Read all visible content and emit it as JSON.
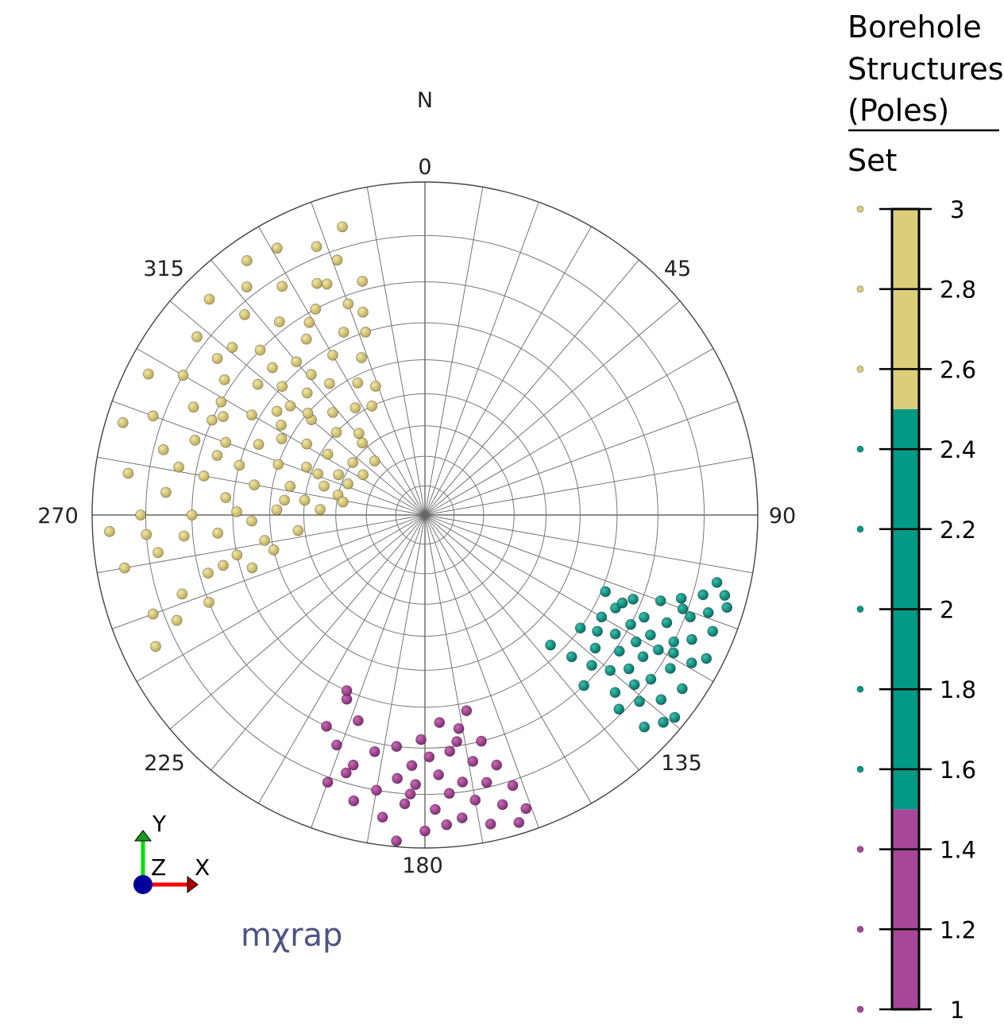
{
  "chart_data": {
    "type": "scatter",
    "projection": "stereographic (equal-angle), lower hemisphere poles",
    "north_label": "N",
    "azimuth_tick_labels": [
      "0",
      "45",
      "90",
      "135",
      "180",
      "225",
      "270",
      "315"
    ],
    "grid": {
      "on": true,
      "radial_step_deg": 10,
      "ring_step_deg": 10
    },
    "legend": {
      "title_lines": [
        "Borehole",
        "Structures",
        "(Poles)"
      ],
      "subtitle": "Set",
      "placement": "right",
      "range": [
        1,
        3
      ],
      "tick_labels": [
        "1",
        "1.2",
        "1.4",
        "1.6",
        "1.8",
        "2",
        "2.2",
        "2.4",
        "2.6",
        "2.8",
        "3"
      ],
      "ticks": [
        1,
        1.2,
        1.4,
        1.6,
        1.8,
        2,
        2.2,
        2.4,
        2.6,
        2.8,
        3
      ],
      "bands": [
        {
          "from": 1,
          "to": 1.5,
          "color": "#a8479a"
        },
        {
          "from": 1.5,
          "to": 2.5,
          "color": "#009a85"
        },
        {
          "from": 2.5,
          "to": 3,
          "color": "#dccd7a"
        }
      ]
    },
    "series": [
      {
        "set": 3,
        "color": "#cdbb6a",
        "points_trend_plunge": [
          [
            250,
            8
          ],
          [
            252,
            15
          ],
          [
            255,
            22
          ],
          [
            258,
            30
          ],
          [
            260,
            5
          ],
          [
            262,
            12
          ],
          [
            265,
            18
          ],
          [
            265,
            26
          ],
          [
            268,
            35
          ],
          [
            270,
            9
          ],
          [
            270,
            20
          ],
          [
            272,
            42
          ],
          [
            275,
            14
          ],
          [
            275,
            28
          ],
          [
            277,
            50
          ],
          [
            278,
            6
          ],
          [
            280,
            22
          ],
          [
            280,
            35
          ],
          [
            282,
            45
          ],
          [
            284,
            12
          ],
          [
            285,
            30
          ],
          [
            286,
            55
          ],
          [
            288,
            18
          ],
          [
            289,
            40
          ],
          [
            290,
            8
          ],
          [
            290,
            25
          ],
          [
            292,
            48
          ],
          [
            293,
            33
          ],
          [
            295,
            15
          ],
          [
            295,
            58
          ],
          [
            296,
            22
          ],
          [
            298,
            38
          ],
          [
            300,
            10
          ],
          [
            300,
            28
          ],
          [
            301,
            45
          ],
          [
            302,
            52
          ],
          [
            304,
            18
          ],
          [
            305,
            33
          ],
          [
            306,
            60
          ],
          [
            308,
            8
          ],
          [
            308,
            25
          ],
          [
            310,
            42
          ],
          [
            311,
            15
          ],
          [
            312,
            30
          ],
          [
            313,
            50
          ],
          [
            315,
            5
          ],
          [
            315,
            20
          ],
          [
            316,
            36
          ],
          [
            318,
            12
          ],
          [
            318,
            45
          ],
          [
            320,
            28
          ],
          [
            321,
            55
          ],
          [
            322,
            8
          ],
          [
            323,
            18
          ],
          [
            324,
            38
          ],
          [
            326,
            25
          ],
          [
            327,
            48
          ],
          [
            328,
            12
          ],
          [
            330,
            32
          ],
          [
            331,
            5
          ],
          [
            332,
            20
          ],
          [
            333,
            42
          ],
          [
            335,
            15
          ],
          [
            336,
            28
          ],
          [
            338,
            8
          ],
          [
            338,
            36
          ],
          [
            340,
            22
          ],
          [
            341,
            12
          ],
          [
            342,
            30
          ],
          [
            344,
            6
          ],
          [
            345,
            18
          ],
          [
            247,
            12
          ],
          [
            257,
            40
          ],
          [
            263,
            48
          ],
          [
            273,
            55
          ],
          [
            283,
            60
          ],
          [
            292,
            62
          ],
          [
            303,
            65
          ],
          [
            287,
            3
          ],
          [
            297,
            4
          ],
          [
            309,
            35
          ],
          [
            314,
            25
          ],
          [
            319,
            58
          ],
          [
            325,
            4
          ],
          [
            334,
            50
          ],
          [
            339,
            45
          ],
          [
            343,
            25
          ],
          [
            244,
            6
          ],
          [
            253,
            33
          ],
          [
            267,
            3
          ],
          [
            279,
            62
          ],
          [
            294,
            20
          ],
          [
            307,
            14
          ],
          [
            317,
            65
          ],
          [
            261,
            38
          ],
          [
            271,
            31
          ],
          [
            281,
            16
          ],
          [
            291,
            52
          ],
          [
            299,
            20
          ],
          [
            311,
            40
          ],
          [
            321,
            33
          ],
          [
            329,
            22
          ],
          [
            337,
            16
          ],
          [
            302,
            36
          ],
          [
            286,
            24
          ],
          [
            276,
            44
          ],
          [
            266,
            10
          ],
          [
            256,
            26
          ],
          [
            248,
            20
          ]
        ]
      },
      {
        "set": 2,
        "color": "#00897a",
        "points_trend_plunge": [
          [
            105,
            4
          ],
          [
            106,
            8
          ],
          [
            107,
            3
          ],
          [
            108,
            12
          ],
          [
            109,
            6
          ],
          [
            110,
            16
          ],
          [
            111,
            9
          ],
          [
            112,
            22
          ],
          [
            112,
            4
          ],
          [
            113,
            29
          ],
          [
            114,
            13
          ],
          [
            115,
            18
          ],
          [
            115,
            7
          ],
          [
            116,
            25
          ],
          [
            117,
            10
          ],
          [
            118,
            15
          ],
          [
            118,
            20
          ],
          [
            119,
            5
          ],
          [
            120,
            12
          ],
          [
            120,
            27
          ],
          [
            121,
            17
          ],
          [
            122,
            8
          ],
          [
            122,
            22
          ],
          [
            123,
            14
          ],
          [
            124,
            4
          ],
          [
            125,
            19
          ],
          [
            126,
            10
          ],
          [
            126,
            30
          ],
          [
            127,
            15
          ],
          [
            128,
            6
          ],
          [
            128,
            24
          ],
          [
            129,
            12
          ],
          [
            130,
            18
          ],
          [
            131,
            3
          ],
          [
            131,
            9
          ],
          [
            132,
            22
          ],
          [
            133,
            14
          ],
          [
            134,
            5
          ],
          [
            134,
            27
          ],
          [
            135,
            11
          ],
          [
            136,
            33
          ],
          [
            137,
            20
          ],
          [
            110,
            11
          ],
          [
            114,
            24
          ],
          [
            119,
            9
          ],
          [
            124,
            26
          ],
          [
            129,
            2
          ],
          [
            103,
            6
          ],
          [
            117,
            3
          ]
        ]
      },
      {
        "set": 1,
        "color": "#9c3a8c",
        "points_trend_plunge": [
          [
            161,
            4
          ],
          [
            162,
            9
          ],
          [
            163,
            2
          ],
          [
            164,
            14
          ],
          [
            165,
            6
          ],
          [
            166,
            20
          ],
          [
            167,
            11
          ],
          [
            168,
            28
          ],
          [
            168,
            3
          ],
          [
            169,
            16
          ],
          [
            170,
            8
          ],
          [
            171,
            24
          ],
          [
            172,
            12
          ],
          [
            173,
            5
          ],
          [
            174,
            19
          ],
          [
            175,
            10
          ],
          [
            176,
            26
          ],
          [
            177,
            14
          ],
          [
            178,
            7
          ],
          [
            179,
            18
          ],
          [
            180,
            3
          ],
          [
            181,
            22
          ],
          [
            182,
            12
          ],
          [
            183,
            16
          ],
          [
            184,
            8
          ],
          [
            185,
            1
          ],
          [
            186,
            13
          ],
          [
            187,
            20
          ],
          [
            188,
            5
          ],
          [
            190,
            10
          ],
          [
            192,
            18
          ],
          [
            194,
            7
          ],
          [
            196,
            14
          ],
          [
            197,
            12
          ],
          [
            198,
            24
          ],
          [
            200,
            9
          ],
          [
            201,
            17
          ],
          [
            203,
            28
          ],
          [
            204,
            30
          ],
          [
            205,
            20
          ],
          [
            172,
            21
          ],
          [
            176,
            4
          ],
          [
            183,
            10
          ]
        ]
      }
    ]
  },
  "axis_triad": {
    "y": "Y",
    "z": "Z",
    "x": "X"
  },
  "logo": "mχrap"
}
